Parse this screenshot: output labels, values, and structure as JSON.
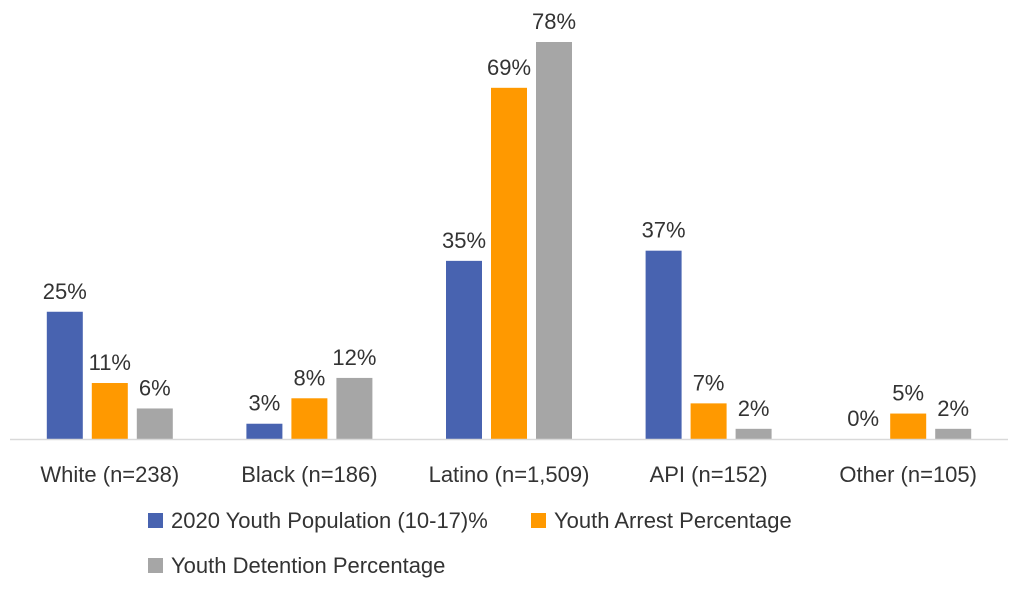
{
  "chart_data": {
    "type": "bar",
    "title": "",
    "xlabel": "",
    "ylabel": "",
    "ylim": [
      0,
      80
    ],
    "grid": false,
    "legend_position": "bottom",
    "categories": [
      "White (n=238)",
      "Black (n=186)",
      "Latino (n=1,509)",
      "API (n=152)",
      "Other (n=105)"
    ],
    "series": [
      {
        "name": "2020 Youth Population (10-17)%",
        "color": "#4863B0",
        "values": [
          25,
          3,
          35,
          37,
          0
        ],
        "labels": [
          "25%",
          "3%",
          "35%",
          "37%",
          "0%"
        ]
      },
      {
        "name": "Youth Arrest Percentage",
        "color": "#FF9900",
        "values": [
          11,
          8,
          69,
          7,
          5
        ],
        "labels": [
          "11%",
          "8%",
          "69%",
          "7%",
          "5%"
        ]
      },
      {
        "name": "Youth Detention Percentage",
        "color": "#A6A6A6",
        "values": [
          6,
          12,
          78,
          2,
          2
        ],
        "labels": [
          "6%",
          "12%",
          "78%",
          "2%",
          "2%"
        ]
      }
    ]
  }
}
